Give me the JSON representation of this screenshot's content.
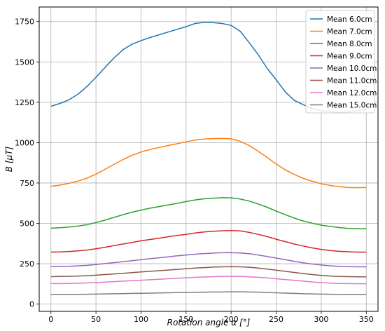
{
  "chart_data": {
    "type": "line",
    "title": "",
    "xlabel": "Rotation angle α [°]",
    "ylabel": "B [μT]",
    "xlim": [
      -13,
      363
    ],
    "ylim": [
      -45,
      1840
    ],
    "xticks": [
      0,
      50,
      100,
      150,
      200,
      250,
      300,
      350
    ],
    "yticks": [
      0,
      250,
      500,
      750,
      1000,
      1250,
      1500,
      1750
    ],
    "grid": true,
    "legend_position": "top-right",
    "x": [
      0,
      10,
      20,
      30,
      40,
      50,
      60,
      70,
      80,
      90,
      100,
      110,
      120,
      130,
      140,
      150,
      160,
      170,
      180,
      190,
      200,
      210,
      220,
      230,
      240,
      250,
      260,
      270,
      280,
      290,
      300,
      310,
      320,
      330,
      340,
      350
    ],
    "series": [
      {
        "name": "Mean 6.0cm",
        "color": "#1f77b4",
        "values": [
          1225,
          1243,
          1265,
          1300,
          1348,
          1404,
          1466,
          1524,
          1576,
          1610,
          1632,
          1651,
          1668,
          1685,
          1702,
          1718,
          1738,
          1745,
          1743,
          1738,
          1726,
          1690,
          1620,
          1545,
          1460,
          1390,
          1315,
          1262,
          1235,
          1212,
          1197,
          1192,
          1188,
          1190,
          1197,
          1205
        ]
      },
      {
        "name": "Mean 7.0cm",
        "color": "#ff7f0e",
        "values": [
          730,
          737,
          748,
          762,
          780,
          805,
          835,
          865,
          895,
          922,
          942,
          958,
          970,
          982,
          993,
          1005,
          1016,
          1022,
          1025,
          1026,
          1024,
          1008,
          982,
          947,
          908,
          868,
          832,
          803,
          779,
          761,
          745,
          735,
          727,
          722,
          721,
          722
        ]
      },
      {
        "name": "Mean 8.0cm",
        "color": "#2ca02c",
        "values": [
          470,
          473,
          477,
          483,
          492,
          505,
          520,
          537,
          554,
          569,
          582,
          594,
          604,
          614,
          624,
          635,
          645,
          652,
          656,
          659,
          658,
          651,
          638,
          620,
          600,
          576,
          554,
          533,
          515,
          501,
          489,
          481,
          474,
          469,
          467,
          467
        ]
      },
      {
        "name": "Mean 9.0cm",
        "color": "#d62728",
        "values": [
          322,
          323,
          326,
          330,
          335,
          343,
          352,
          362,
          372,
          382,
          392,
          400,
          408,
          417,
          425,
          432,
          440,
          447,
          451,
          454,
          456,
          453,
          444,
          432,
          418,
          402,
          387,
          372,
          360,
          348,
          339,
          332,
          327,
          324,
          322,
          322
        ]
      },
      {
        "name": "Mean 10.0cm",
        "color": "#9467bd",
        "values": [
          232,
          233,
          234,
          237,
          240,
          245,
          251,
          257,
          263,
          269,
          275,
          281,
          287,
          293,
          299,
          304,
          309,
          313,
          316,
          318,
          319,
          317,
          312,
          304,
          295,
          285,
          275,
          265,
          256,
          248,
          242,
          237,
          234,
          232,
          231,
          231
        ]
      },
      {
        "name": "Mean 11.0cm",
        "color": "#8c564b",
        "values": [
          170,
          171,
          172,
          174,
          176,
          179,
          183,
          187,
          191,
          195,
          199,
          203,
          207,
          211,
          215,
          219,
          223,
          226,
          229,
          231,
          232,
          231,
          228,
          223,
          217,
          210,
          203,
          196,
          189,
          183,
          178,
          174,
          171,
          170,
          169,
          169
        ]
      },
      {
        "name": "Mean 12.0cm",
        "color": "#e377c2",
        "values": [
          127,
          127,
          128,
          129,
          131,
          133,
          136,
          139,
          142,
          145,
          148,
          151,
          154,
          157,
          160,
          163,
          166,
          168,
          170,
          171,
          172,
          171,
          169,
          166,
          162,
          157,
          152,
          147,
          142,
          137,
          133,
          130,
          128,
          127,
          126,
          126
        ]
      },
      {
        "name": "Mean 15.0cm",
        "color": "#7f7f7f",
        "values": [
          60,
          60,
          60,
          60,
          61,
          62,
          63,
          64,
          65,
          66,
          67,
          68,
          69,
          70,
          71,
          72,
          73,
          74,
          75,
          75,
          76,
          76,
          75,
          74,
          72,
          70,
          68,
          66,
          64,
          63,
          62,
          61,
          60,
          60,
          60,
          60
        ]
      }
    ]
  }
}
